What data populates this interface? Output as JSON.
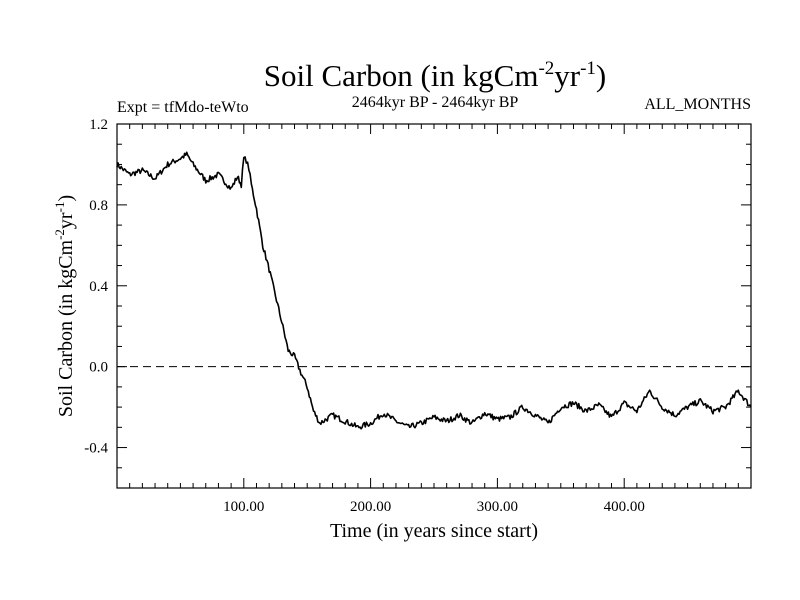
{
  "chart_data": {
    "type": "line",
    "title": "Soil Carbon (in kgCm",
    "title_sup1": "-2",
    "title_mid": "yr",
    "title_sup2": "-1",
    "title_end": ")",
    "subtitle_left": "Expt = tfMdo-teWto",
    "subtitle_center": "2464kyr BP - 2464kyr BP",
    "subtitle_right": "ALL_MONTHS",
    "xlabel": "Time (in years since start)",
    "ylabel": "Soil Carbon (in kgCm",
    "ylabel_sup1": "-2",
    "ylabel_mid": "yr",
    "ylabel_sup2": "-1",
    "ylabel_end": ")",
    "xlim": [
      0,
      500
    ],
    "ylim": [
      -0.6,
      1.2
    ],
    "x_ticks": [
      100,
      200,
      300,
      400
    ],
    "x_tick_labels": [
      "100.00",
      "200.00",
      "300.00",
      "400.00"
    ],
    "y_ticks": [
      -0.4,
      0.0,
      0.4,
      0.8,
      1.2
    ],
    "y_tick_labels": [
      "-0.4",
      "0.0",
      "0.4",
      "0.8",
      "1.2"
    ],
    "reference_line_y": 0.0,
    "series": [
      {
        "name": "Soil Carbon",
        "x": [
          0,
          10,
          20,
          30,
          40,
          50,
          55,
          60,
          70,
          80,
          90,
          95,
          98,
          100,
          102,
          104,
          106,
          110,
          115,
          120,
          125,
          130,
          135,
          140,
          145,
          150,
          155,
          160,
          170,
          180,
          190,
          200,
          210,
          220,
          230,
          240,
          250,
          260,
          270,
          280,
          290,
          300,
          310,
          320,
          330,
          340,
          350,
          360,
          370,
          380,
          390,
          400,
          410,
          420,
          430,
          440,
          450,
          460,
          470,
          480,
          490,
          500
        ],
        "y": [
          1.0,
          0.95,
          0.97,
          0.93,
          1.0,
          1.03,
          1.05,
          1.0,
          0.92,
          0.95,
          0.88,
          0.94,
          0.9,
          1.03,
          1.02,
          0.98,
          0.9,
          0.78,
          0.6,
          0.48,
          0.35,
          0.22,
          0.08,
          0.05,
          -0.03,
          -0.1,
          -0.22,
          -0.28,
          -0.24,
          -0.27,
          -0.3,
          -0.28,
          -0.23,
          -0.27,
          -0.3,
          -0.28,
          -0.25,
          -0.27,
          -0.24,
          -0.28,
          -0.23,
          -0.26,
          -0.25,
          -0.2,
          -0.24,
          -0.28,
          -0.2,
          -0.18,
          -0.22,
          -0.19,
          -0.25,
          -0.18,
          -0.22,
          -0.12,
          -0.2,
          -0.24,
          -0.2,
          -0.17,
          -0.22,
          -0.2,
          -0.12,
          -0.2
        ]
      }
    ]
  }
}
